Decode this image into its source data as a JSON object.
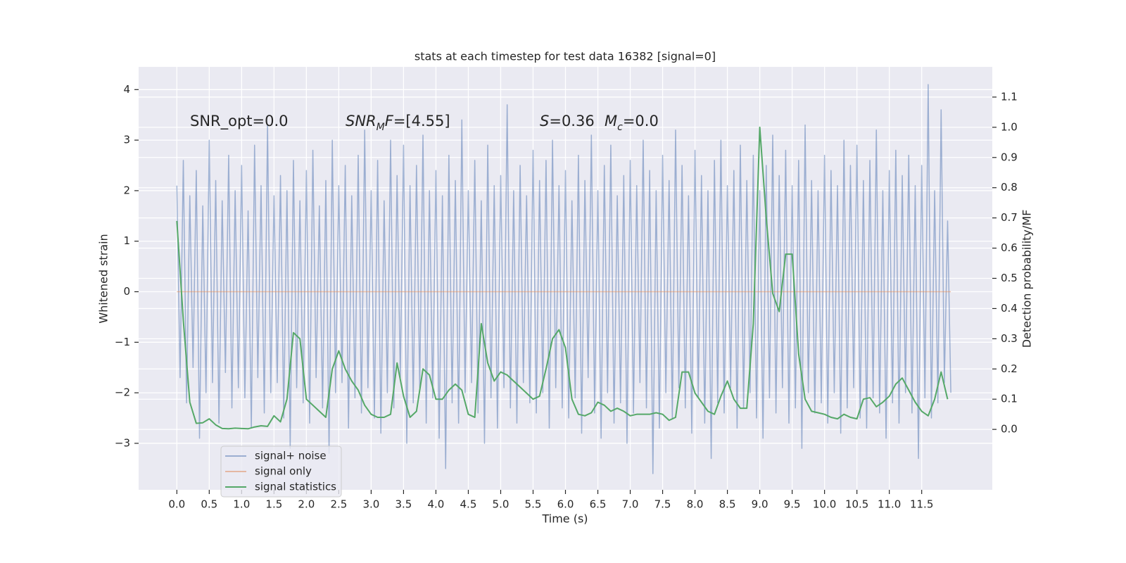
{
  "chart_data": {
    "type": "line",
    "title": "stats at each timestep for test data 16382 [signal=0]",
    "xlabel": "Time (s)",
    "ylabel": "Whitened strain",
    "y2label": "Detection probability/MF",
    "annotations": [
      [
        {
          "text": "SNR_opt=0.0",
          "style": "normal"
        }
      ],
      [
        {
          "text": "SNR",
          "style": "italic"
        },
        {
          "text": "M",
          "style": "sub"
        },
        {
          "text": "F",
          "style": "italic"
        },
        {
          "text": "=[4.55]",
          "style": "normal"
        }
      ],
      [
        {
          "text": "S",
          "style": "italic"
        },
        {
          "text": "=0.36",
          "style": "normal"
        }
      ],
      [
        {
          "text": "M",
          "style": "italic"
        },
        {
          "text": "c",
          "style": "sub"
        },
        {
          "text": "=0.0",
          "style": "normal"
        }
      ]
    ],
    "xlim": [
      -0.59,
      12.59
    ],
    "ylim": [
      -3.92,
      4.45
    ],
    "y2lim": [
      -0.2,
      1.2
    ],
    "xticks": [
      {
        "value": 0,
        "label": "0.0"
      },
      0.5,
      {
        "value": 1,
        "label": "1.0"
      },
      1.5,
      {
        "value": 2,
        "label": "2.0"
      },
      2.5,
      {
        "value": 3,
        "label": "3.0"
      },
      3.5,
      {
        "value": 4,
        "label": "4.0"
      },
      4.5,
      {
        "value": 5,
        "label": "5.0"
      },
      5.5,
      {
        "value": 6,
        "label": "6.0"
      },
      6.5,
      {
        "value": 7,
        "label": "7.0"
      },
      7.5,
      {
        "value": 8,
        "label": "8.0"
      },
      8.5,
      {
        "value": 9,
        "label": "9.0"
      },
      9.5,
      {
        "value": 10,
        "label": "10.0"
      },
      10.5,
      {
        "value": 11,
        "label": "11.0"
      },
      11.5
    ],
    "yticks": [
      {
        "value": -3,
        "label": "−3"
      },
      {
        "value": -2,
        "label": "−2"
      },
      {
        "value": -1,
        "label": "−1"
      },
      0,
      1,
      2,
      3,
      4
    ],
    "y2ticks": [
      {
        "value": 0,
        "label": "0.0"
      },
      0.1,
      0.2,
      0.3,
      0.4,
      0.5,
      0.6,
      0.7,
      0.8,
      0.9,
      {
        "value": 1,
        "label": "1.0"
      },
      1.1
    ],
    "grid": true,
    "background": "#eaeaf2",
    "series": [
      {
        "name": "signal+ noise",
        "color": "#4c72b0",
        "opacity": 0.5,
        "axis": "y",
        "x": [
          0,
          0.05,
          0.1,
          0.15,
          0.2,
          0.25,
          0.3,
          0.35,
          0.4,
          0.45,
          0.5,
          0.55,
          0.6,
          0.65,
          0.7,
          0.75,
          0.8,
          0.85,
          0.9,
          0.95,
          1,
          1.05,
          1.1,
          1.15,
          1.2,
          1.25,
          1.3,
          1.35,
          1.4,
          1.45,
          1.5,
          1.55,
          1.6,
          1.65,
          1.7,
          1.75,
          1.8,
          1.85,
          1.9,
          1.95,
          2,
          2.05,
          2.1,
          2.15,
          2.2,
          2.25,
          2.3,
          2.35,
          2.4,
          2.45,
          2.5,
          2.55,
          2.6,
          2.65,
          2.7,
          2.75,
          2.8,
          2.85,
          2.9,
          2.95,
          3,
          3.05,
          3.1,
          3.15,
          3.2,
          3.25,
          3.3,
          3.35,
          3.4,
          3.45,
          3.5,
          3.55,
          3.6,
          3.65,
          3.7,
          3.75,
          3.8,
          3.85,
          3.9,
          3.95,
          4,
          4.05,
          4.1,
          4.15,
          4.2,
          4.25,
          4.3,
          4.35,
          4.4,
          4.45,
          4.5,
          4.55,
          4.6,
          4.65,
          4.7,
          4.75,
          4.8,
          4.85,
          4.9,
          4.95,
          5,
          5.05,
          5.1,
          5.15,
          5.2,
          5.25,
          5.3,
          5.35,
          5.4,
          5.45,
          5.5,
          5.55,
          5.6,
          5.65,
          5.7,
          5.75,
          5.8,
          5.85,
          5.9,
          5.95,
          6,
          6.05,
          6.1,
          6.15,
          6.2,
          6.25,
          6.3,
          6.35,
          6.4,
          6.45,
          6.5,
          6.55,
          6.6,
          6.65,
          6.7,
          6.75,
          6.8,
          6.85,
          6.9,
          6.95,
          7,
          7.05,
          7.1,
          7.15,
          7.2,
          7.25,
          7.3,
          7.35,
          7.4,
          7.45,
          7.5,
          7.55,
          7.6,
          7.65,
          7.7,
          7.75,
          7.8,
          7.85,
          7.9,
          7.95,
          8,
          8.05,
          8.1,
          8.15,
          8.2,
          8.25,
          8.3,
          8.35,
          8.4,
          8.45,
          8.5,
          8.55,
          8.6,
          8.65,
          8.7,
          8.75,
          8.8,
          8.85,
          8.9,
          8.95,
          9,
          9.05,
          9.1,
          9.15,
          9.2,
          9.25,
          9.3,
          9.35,
          9.4,
          9.45,
          9.5,
          9.55,
          9.6,
          9.65,
          9.7,
          9.75,
          9.8,
          9.85,
          9.9,
          9.95,
          10,
          10.05,
          10.1,
          10.15,
          10.2,
          10.25,
          10.3,
          10.35,
          10.4,
          10.45,
          10.5,
          10.55,
          10.6,
          10.65,
          10.7,
          10.75,
          10.8,
          10.85,
          10.9,
          10.95,
          11,
          11.05,
          11.1,
          11.15,
          11.2,
          11.25,
          11.3,
          11.35,
          11.4,
          11.45,
          11.5,
          11.55,
          11.6,
          11.65,
          11.7,
          11.75,
          11.8,
          11.85,
          11.9,
          11.95
        ],
        "values": [
          2.1,
          -1.7,
          2.6,
          -2.2,
          1.9,
          -1.5,
          2.4,
          -2.9,
          1.7,
          -2.0,
          3.0,
          -1.8,
          2.2,
          -2.6,
          1.8,
          -1.6,
          2.7,
          -2.3,
          2.0,
          -1.9,
          2.5,
          -2.1,
          1.6,
          -2.7,
          2.9,
          -1.7,
          2.1,
          -2.4,
          3.3,
          -2.0,
          1.9,
          -1.8,
          2.3,
          -2.5,
          2.0,
          -3.1,
          2.6,
          -1.9,
          1.8,
          -2.2,
          2.4,
          -2.6,
          2.8,
          -1.7,
          1.7,
          -2.3,
          2.2,
          -3.2,
          3.0,
          -2.0,
          2.1,
          -1.8,
          2.5,
          -2.7,
          1.9,
          -2.1,
          2.7,
          -2.4,
          3.2,
          -1.9,
          2.0,
          -2.5,
          2.6,
          -2.8,
          1.8,
          -2.0,
          3.0,
          -2.3,
          2.3,
          -1.7,
          2.9,
          -3.0,
          2.1,
          -2.2,
          2.5,
          -1.9,
          3.1,
          -2.6,
          2.0,
          -2.1,
          2.4,
          -2.9,
          1.9,
          -3.5,
          2.7,
          -2.2,
          2.2,
          -2.6,
          3.4,
          -2.0,
          2.0,
          -1.8,
          2.6,
          -2.4,
          1.8,
          -3.0,
          2.9,
          -2.1,
          2.1,
          -2.7,
          2.3,
          -1.9,
          3.7,
          -2.3,
          2.0,
          -2.6,
          2.5,
          -1.8,
          1.9,
          -2.2,
          2.8,
          -2.4,
          2.2,
          -2.0,
          2.6,
          -2.7,
          3.0,
          -1.9,
          2.1,
          -2.3,
          2.4,
          -2.5,
          1.8,
          -2.1,
          2.7,
          -2.8,
          2.2,
          -1.7,
          3.1,
          -2.4,
          2.0,
          -2.9,
          2.5,
          -2.0,
          2.9,
          -2.6,
          1.9,
          -2.2,
          2.3,
          -3.0,
          2.6,
          -2.4,
          2.1,
          -1.8,
          3.0,
          -2.3,
          2.4,
          -3.6,
          2.0,
          -2.7,
          2.7,
          -2.0,
          2.2,
          -2.5,
          3.2,
          -1.9,
          2.5,
          -2.3,
          1.9,
          -2.8,
          2.8,
          -2.1,
          2.3,
          -2.6,
          2.0,
          -3.3,
          2.6,
          -2.2,
          3.0,
          -2.4,
          2.1,
          -1.9,
          2.4,
          -2.7,
          2.9,
          -2.3,
          2.2,
          -2.0,
          2.7,
          -2.5,
          2.0,
          -2.9,
          2.5,
          -2.1,
          3.1,
          -2.4,
          2.3,
          -1.9,
          2.8,
          -2.6,
          2.1,
          -2.3,
          2.6,
          -3.1,
          3.3,
          -2.0,
          2.2,
          -2.4,
          2.0,
          -2.2,
          2.7,
          -2.6,
          2.4,
          -2.0,
          2.1,
          -2.8,
          3.0,
          -2.3,
          2.5,
          -1.9,
          2.9,
          -2.5,
          2.2,
          -2.7,
          2.6,
          -2.1,
          3.2,
          -2.4,
          2.0,
          -2.9,
          2.4,
          -2.2,
          2.8,
          -2.6,
          2.3,
          -2.0,
          2.7,
          -2.4,
          2.1,
          -3.3,
          2.5,
          -2.1,
          4.1,
          -2.5,
          2.0,
          -2.2,
          3.6,
          -1.8,
          1.4,
          -2.0
        ]
      },
      {
        "name": "signal only",
        "color": "#dd8452",
        "opacity": 0.5,
        "axis": "y",
        "x": [
          0,
          11.95
        ],
        "values": [
          0,
          0
        ]
      },
      {
        "name": "signal statistics",
        "color": "#55a868",
        "opacity": 1,
        "axis": "y2",
        "x": [
          0,
          0.1,
          0.2,
          0.3,
          0.4,
          0.5,
          0.6,
          0.7,
          0.8,
          0.9,
          1,
          1.1,
          1.2,
          1.3,
          1.4,
          1.5,
          1.6,
          1.7,
          1.8,
          1.9,
          2,
          2.1,
          2.2,
          2.3,
          2.4,
          2.5,
          2.6,
          2.7,
          2.8,
          2.9,
          3,
          3.1,
          3.2,
          3.3,
          3.4,
          3.5,
          3.6,
          3.7,
          3.8,
          3.9,
          4,
          4.1,
          4.2,
          4.3,
          4.4,
          4.5,
          4.6,
          4.7,
          4.8,
          4.9,
          5,
          5.1,
          5.2,
          5.3,
          5.4,
          5.5,
          5.6,
          5.7,
          5.8,
          5.9,
          6,
          6.1,
          6.2,
          6.3,
          6.4,
          6.5,
          6.6,
          6.7,
          6.8,
          6.9,
          7,
          7.1,
          7.2,
          7.3,
          7.4,
          7.5,
          7.6,
          7.7,
          7.8,
          7.9,
          8,
          8.1,
          8.2,
          8.3,
          8.4,
          8.5,
          8.6,
          8.7,
          8.8,
          8.9,
          9,
          9.1,
          9.2,
          9.3,
          9.4,
          9.5,
          9.6,
          9.7,
          9.8,
          9.9,
          10,
          10.1,
          10.2,
          10.3,
          10.4,
          10.5,
          10.6,
          10.7,
          10.8,
          10.9,
          11,
          11.1,
          11.2,
          11.3,
          11.4,
          11.5,
          11.6,
          11.7,
          11.8,
          11.9
        ],
        "values": [
          0.69,
          0.36,
          0.09,
          0.02,
          0.022,
          0.035,
          0.015,
          0.003,
          0.002,
          0.004,
          0.003,
          0.002,
          0.008,
          0.012,
          0.01,
          0.045,
          0.025,
          0.1,
          0.32,
          0.3,
          0.1,
          0.08,
          0.06,
          0.04,
          0.2,
          0.26,
          0.2,
          0.16,
          0.13,
          0.08,
          0.05,
          0.04,
          0.04,
          0.05,
          0.22,
          0.11,
          0.04,
          0.06,
          0.2,
          0.18,
          0.1,
          0.1,
          0.13,
          0.15,
          0.13,
          0.05,
          0.04,
          0.35,
          0.22,
          0.16,
          0.19,
          0.18,
          0.16,
          0.14,
          0.12,
          0.1,
          0.11,
          0.2,
          0.3,
          0.33,
          0.27,
          0.1,
          0.05,
          0.045,
          0.055,
          0.09,
          0.08,
          0.06,
          0.07,
          0.06,
          0.045,
          0.05,
          0.05,
          0.05,
          0.055,
          0.05,
          0.03,
          0.04,
          0.19,
          0.19,
          0.12,
          0.09,
          0.06,
          0.05,
          0.11,
          0.16,
          0.1,
          0.07,
          0.07,
          0.35,
          1.0,
          0.7,
          0.45,
          0.39,
          0.58,
          0.58,
          0.25,
          0.1,
          0.06,
          0.055,
          0.05,
          0.04,
          0.035,
          0.05,
          0.04,
          0.035,
          0.1,
          0.105,
          0.075,
          0.09,
          0.11,
          0.15,
          0.17,
          0.13,
          0.09,
          0.06,
          0.045,
          0.1,
          0.19,
          0.1
        ]
      }
    ]
  }
}
